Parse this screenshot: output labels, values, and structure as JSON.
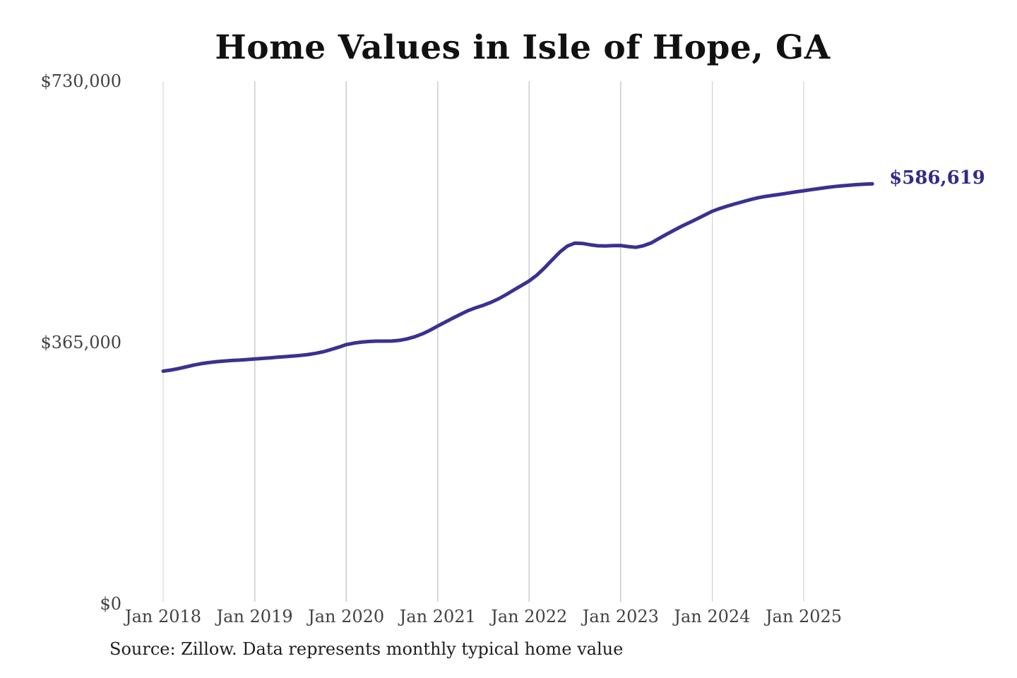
{
  "source_note": "Source: Zillow. Data represents monthly typical home value",
  "colors": {
    "line": "#3a3191",
    "end_label": "#322b8a",
    "grid": "#cccccc",
    "tick_text": "#424242",
    "title_text": "#111111",
    "source_text": "#1f1f1f",
    "background": "#ffffff"
  },
  "chart_data": {
    "type": "line",
    "title": "Home Values in Isle of Hope, GA",
    "xlabel": "",
    "ylabel": "",
    "ylim": [
      0,
      730000
    ],
    "grid": "vertical",
    "legend": "none",
    "x_start": "Jan 2018",
    "x_interval": "1 month",
    "x_ticks": [
      "Jan 2018",
      "Jan 2019",
      "Jan 2020",
      "Jan 2021",
      "Jan 2022",
      "Jan 2023",
      "Jan 2024",
      "Jan 2025"
    ],
    "x_tick_month_indices": [
      0,
      12,
      24,
      36,
      48,
      60,
      72,
      84
    ],
    "y_ticks": [
      {
        "value": 0,
        "label": "$0"
      },
      {
        "value": 365000,
        "label": "$365,000"
      },
      {
        "value": 730000,
        "label": "$730,000"
      }
    ],
    "end_label": "$586,619",
    "final_value": 586619,
    "values": [
      325000,
      326500,
      328600,
      331000,
      333500,
      335500,
      337000,
      338300,
      339200,
      339900,
      340400,
      341200,
      342000,
      342800,
      343600,
      344500,
      345300,
      346200,
      347000,
      348200,
      349900,
      352100,
      355100,
      358400,
      362000,
      364100,
      365600,
      366500,
      367000,
      367000,
      367100,
      368100,
      370100,
      373100,
      377100,
      382200,
      388000,
      393600,
      399100,
      404500,
      409600,
      413600,
      417100,
      421200,
      426200,
      432100,
      438500,
      444700,
      451000,
      459100,
      469200,
      480300,
      491200,
      499800,
      503900,
      503400,
      501500,
      500100,
      499900,
      500400,
      500500,
      499100,
      498000,
      500200,
      504100,
      510200,
      516100,
      521900,
      527400,
      532500,
      537600,
      543000,
      548300,
      552200,
      555600,
      558700,
      561700,
      564600,
      567100,
      569100,
      570700,
      572200,
      573800,
      575500,
      577000,
      578600,
      580100,
      581500,
      582800,
      583900,
      584800,
      585600,
      586200,
      586619
    ]
  }
}
